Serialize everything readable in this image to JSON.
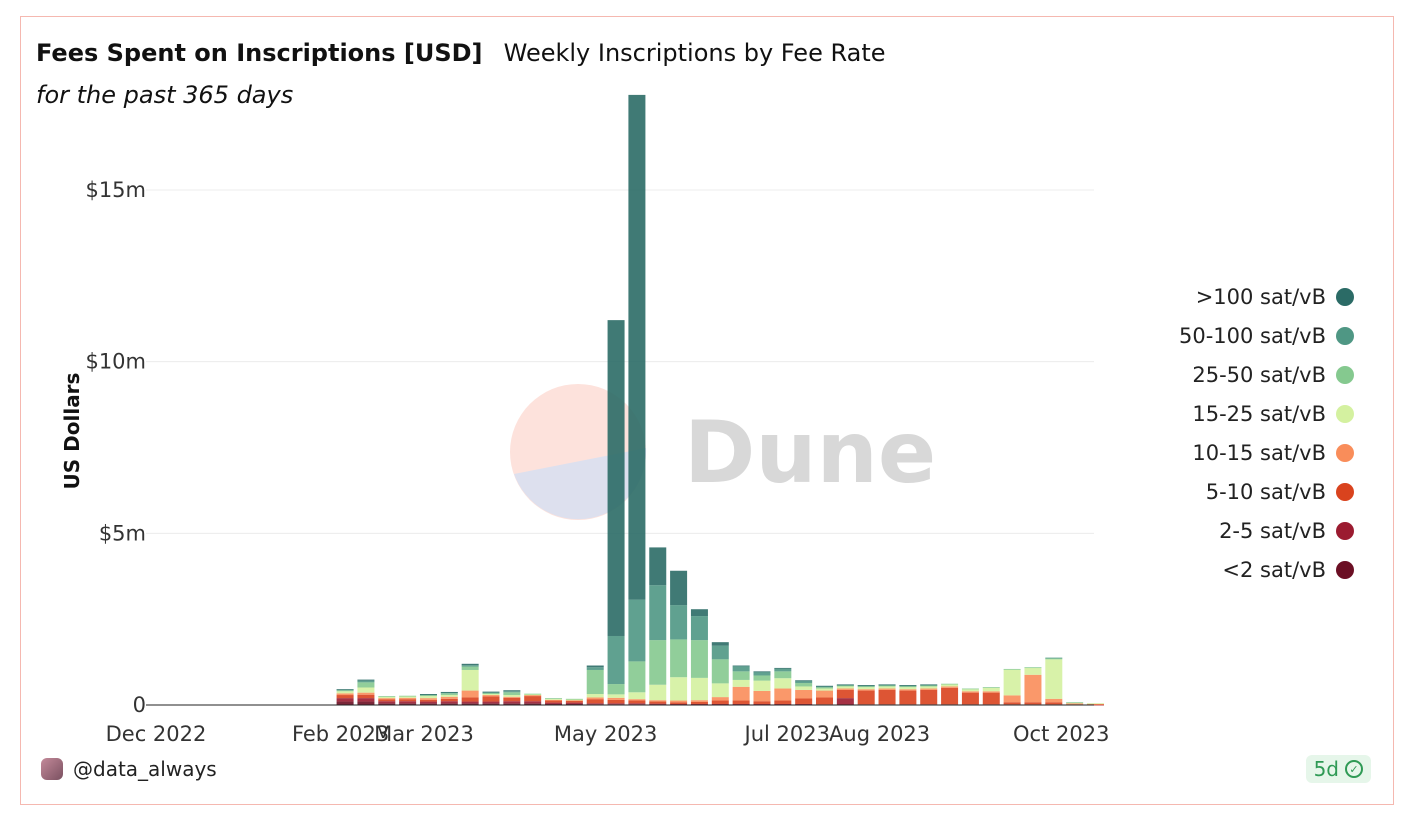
{
  "header": {
    "title": "Fees Spent on Inscriptions [USD]",
    "subtitle": "Weekly Inscriptions by Fee Rate",
    "caption": "for the past 365 days"
  },
  "footer": {
    "author": "@data_always",
    "freshness": "5d",
    "freshness_icon": "check-icon"
  },
  "watermark": "Dune",
  "chart_data": {
    "type": "bar",
    "stacked": true,
    "ylabel": "US Dollars",
    "xlabel": "",
    "ylim": [
      0,
      18000000
    ],
    "y_ticks": [
      0,
      5000000,
      10000000,
      15000000
    ],
    "y_tick_labels": [
      "0",
      "$5m",
      "$10m",
      "$15m"
    ],
    "x_ticks": [
      {
        "label": "Dec 2022",
        "date": "2022-12-01"
      },
      {
        "label": "Feb 2023",
        "date": "2023-02-01"
      },
      {
        "label": "Mar 2023",
        "date": "2023-03-01"
      },
      {
        "label": "May 2023",
        "date": "2023-05-01"
      },
      {
        "label": "Jul 2023",
        "date": "2023-07-01"
      },
      {
        "label": "Aug 2023",
        "date": "2023-08-01"
      },
      {
        "label": "Oct 2023",
        "date": "2023-10-01"
      }
    ],
    "x_range": [
      "2022-12-01",
      "2023-10-12"
    ],
    "grid": true,
    "legend_position": "right",
    "x": [
      "2023-01-30",
      "2023-02-06",
      "2023-02-13",
      "2023-02-20",
      "2023-02-27",
      "2023-03-06",
      "2023-03-13",
      "2023-03-20",
      "2023-03-27",
      "2023-04-03",
      "2023-04-10",
      "2023-04-17",
      "2023-04-24",
      "2023-05-01",
      "2023-05-08",
      "2023-05-15",
      "2023-05-22",
      "2023-05-29",
      "2023-06-05",
      "2023-06-12",
      "2023-06-19",
      "2023-06-26",
      "2023-07-03",
      "2023-07-10",
      "2023-07-17",
      "2023-07-24",
      "2023-07-31",
      "2023-08-07",
      "2023-08-14",
      "2023-08-21",
      "2023-08-28",
      "2023-09-04",
      "2023-09-11",
      "2023-09-18",
      "2023-09-25",
      "2023-10-02",
      "2023-10-09"
    ],
    "series": [
      {
        "name": "<2 sat/vB",
        "color": "#6b0f24",
        "values": [
          100000,
          100000,
          50000,
          50000,
          50000,
          50000,
          50000,
          50000,
          50000,
          50000,
          30000,
          30000,
          20000,
          20000,
          20000,
          20000,
          10000,
          10000,
          10000,
          10000,
          10000,
          10000,
          10000,
          0,
          0,
          0,
          0,
          0,
          0,
          0,
          0,
          0,
          0,
          0,
          0,
          0,
          0
        ]
      },
      {
        "name": "2-5 sat/vB",
        "color": "#9b1b30",
        "values": [
          100000,
          100000,
          60000,
          60000,
          50000,
          60000,
          50000,
          50000,
          60000,
          60000,
          40000,
          40000,
          30000,
          30000,
          30000,
          20000,
          20000,
          20000,
          20000,
          20000,
          20000,
          20000,
          20000,
          20000,
          200000,
          20000,
          20000,
          20000,
          20000,
          20000,
          20000,
          20000,
          20000,
          20000,
          20000,
          10000,
          10000
        ]
      },
      {
        "name": "5-10 sat/vB",
        "color": "#d9431e",
        "values": [
          90000,
          100000,
          50000,
          60000,
          50000,
          70000,
          120000,
          150000,
          100000,
          150000,
          60000,
          50000,
          120000,
          100000,
          80000,
          60000,
          50000,
          60000,
          100000,
          100000,
          80000,
          100000,
          160000,
          200000,
          240000,
          400000,
          420000,
          400000,
          420000,
          480000,
          340000,
          340000,
          60000,
          60000,
          60000,
          10000,
          10000
        ]
      },
      {
        "name": "10-15 sat/vB",
        "color": "#f98d5a",
        "values": [
          50000,
          60000,
          40000,
          40000,
          50000,
          60000,
          200000,
          40000,
          30000,
          30000,
          20000,
          20000,
          50000,
          60000,
          40000,
          40000,
          50000,
          50000,
          100000,
          400000,
          300000,
          350000,
          250000,
          200000,
          40000,
          40000,
          40000,
          40000,
          40000,
          40000,
          40000,
          40000,
          200000,
          800000,
          100000,
          30000,
          20000
        ]
      },
      {
        "name": "15-25 sat/vB",
        "color": "#d4f1a0",
        "values": [
          60000,
          150000,
          40000,
          40000,
          60000,
          50000,
          600000,
          30000,
          50000,
          20000,
          30000,
          20000,
          100000,
          100000,
          200000,
          450000,
          680000,
          650000,
          400000,
          200000,
          300000,
          300000,
          100000,
          60000,
          60000,
          60000,
          60000,
          60000,
          60000,
          60000,
          60000,
          100000,
          750000,
          200000,
          1150000,
          20000,
          10000
        ]
      },
      {
        "name": "25-50 sat/vB",
        "color": "#85c98f",
        "values": [
          30000,
          150000,
          20000,
          20000,
          30000,
          50000,
          100000,
          30000,
          80000,
          20000,
          20000,
          20000,
          700000,
          300000,
          900000,
          1300000,
          1100000,
          1100000,
          700000,
          250000,
          150000,
          200000,
          100000,
          40000,
          40000,
          40000,
          40000,
          40000,
          40000,
          20000,
          20000,
          20000,
          20000,
          20000,
          30000,
          10000,
          0
        ]
      },
      {
        "name": "50-100 sat/vB",
        "color": "#4f9784",
        "values": [
          20000,
          50000,
          0,
          0,
          20000,
          30000,
          40000,
          20000,
          30000,
          0,
          0,
          0,
          80000,
          1400000,
          1800000,
          1600000,
          1000000,
          700000,
          400000,
          150000,
          100000,
          80000,
          60000,
          20000,
          10000,
          10000,
          10000,
          10000,
          10000,
          0,
          0,
          0,
          0,
          0,
          20000,
          0,
          0
        ]
      },
      {
        "name": ">100 sat/vB",
        "color": "#2b6b66",
        "values": [
          10000,
          30000,
          0,
          0,
          10000,
          10000,
          40000,
          20000,
          30000,
          0,
          0,
          0,
          50000,
          9200000,
          14700000,
          1100000,
          1000000,
          200000,
          100000,
          20000,
          20000,
          20000,
          20000,
          20000,
          10000,
          10000,
          10000,
          10000,
          10000,
          0,
          0,
          0,
          0,
          0,
          0,
          0,
          0
        ]
      }
    ]
  }
}
